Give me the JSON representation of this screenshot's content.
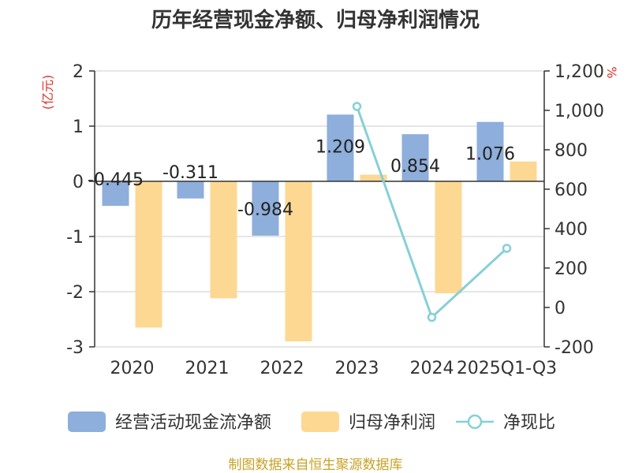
{
  "chart_data": {
    "type": "bar",
    "title": "历年经营现金净额、归母净利润情况",
    "categories": [
      "2020",
      "2021",
      "2022",
      "2023",
      "2024",
      "2025Q1-Q3"
    ],
    "left_axis": {
      "unit_label": "(亿元)",
      "ylim": [
        -3,
        2
      ],
      "ticks": [
        -3,
        -2,
        -1,
        0,
        1,
        2
      ],
      "tick_labels": [
        "-3",
        "-2",
        "-1",
        "0",
        "1",
        "2"
      ]
    },
    "right_axis": {
      "unit_label": "%",
      "ylim": [
        -200,
        1200
      ],
      "ticks": [
        -200,
        0,
        200,
        400,
        600,
        800,
        1000,
        1200
      ],
      "tick_labels": [
        "-200",
        "0",
        "200",
        "400",
        "600",
        "800",
        "1,000",
        "1,200"
      ]
    },
    "series": [
      {
        "name": "经营活动现金流净额",
        "kind": "bar",
        "axis": "left",
        "color": "#8eaedb",
        "values": [
          -0.445,
          -0.311,
          -0.984,
          1.209,
          0.854,
          1.076
        ],
        "labels": [
          "-0.445",
          "-0.311",
          "-0.984",
          "1.209",
          "0.854",
          "1.076"
        ]
      },
      {
        "name": "归母净利润",
        "kind": "bar",
        "axis": "left",
        "color": "#fdd893",
        "values": [
          -2.65,
          -2.12,
          -2.9,
          0.12,
          -2.03,
          0.36
        ]
      },
      {
        "name": "净现比",
        "kind": "line",
        "axis": "right",
        "color": "#86d0d6",
        "values": [
          null,
          null,
          null,
          1020,
          -50,
          300
        ]
      }
    ],
    "legend_position": "bottom",
    "grid": true
  },
  "source_text": "制图数据来自恒生聚源数据库"
}
